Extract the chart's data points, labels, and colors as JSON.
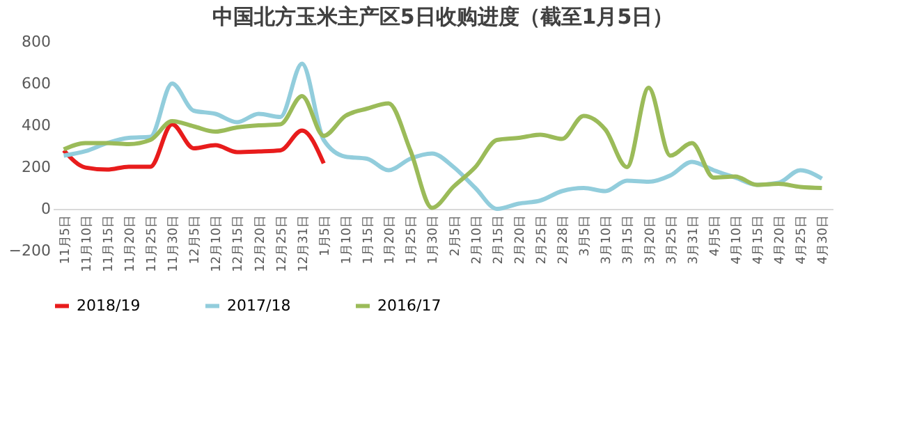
{
  "chart_data": {
    "type": "line",
    "title": "中国北方玉米主产区5日收购进度（截至1月5日）",
    "categories": [
      "11月5日",
      "11月10日",
      "11月15日",
      "11月20日",
      "11月25日",
      "11月30日",
      "12月5日",
      "12月10日",
      "12月15日",
      "12月20日",
      "12月25日",
      "12月31日",
      "1月5日",
      "1月10日",
      "1月15日",
      "1月20日",
      "1月25日",
      "1月30日",
      "2月5日",
      "2月10日",
      "2月15日",
      "2月20日",
      "2月25日",
      "2月28日",
      "3月5日",
      "3月10日",
      "3月15日",
      "3月20日",
      "3月25日",
      "3月31日",
      "4月5日",
      "4月10日",
      "4月15日",
      "4月20日",
      "4月25日",
      "4月30日"
    ],
    "series": [
      {
        "name": "2018/19",
        "color": "#e81c1c",
        "values": [
          280,
          198,
          188,
          202,
          202,
          405,
          290,
          305,
          272,
          275,
          280,
          375,
          218,
          null,
          null,
          null,
          null,
          null,
          null,
          null,
          null,
          null,
          null,
          null,
          null,
          null,
          null,
          null,
          null,
          null,
          null,
          null,
          null,
          null,
          null,
          null
        ]
      },
      {
        "name": "2017/18",
        "color": "#92cddc",
        "values": [
          255,
          276,
          315,
          340,
          345,
          600,
          470,
          455,
          415,
          455,
          440,
          695,
          330,
          250,
          240,
          185,
          240,
          265,
          200,
          100,
          0,
          25,
          40,
          85,
          100,
          85,
          135,
          130,
          160,
          225,
          185,
          150,
          115,
          125,
          185,
          145
        ]
      },
      {
        "name": "2016/17",
        "color": "#9bbb59",
        "values": [
          285,
          315,
          315,
          310,
          330,
          420,
          395,
          370,
          390,
          400,
          405,
          540,
          350,
          445,
          480,
          505,
          280,
          5,
          107,
          200,
          330,
          340,
          355,
          335,
          445,
          380,
          200,
          580,
          255,
          315,
          150,
          155,
          115,
          120,
          105,
          100
        ]
      }
    ],
    "ylim": [
      -200,
      800
    ],
    "yticks": [
      -200,
      0,
      200,
      400,
      600,
      800
    ],
    "grid": false,
    "legend": "bottom"
  }
}
